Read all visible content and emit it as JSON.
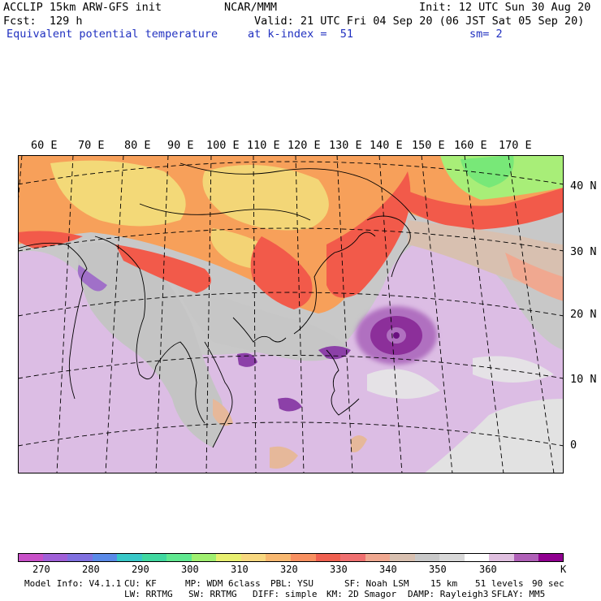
{
  "header": {
    "model": "ACCLIP 15km ARW-GFS init",
    "center": "NCAR/MMM",
    "init": "Init: 12 UTC Sun 30 Aug 20",
    "fcst": "Fcst:  129 h",
    "valid": "Valid: 21 UTC Fri 04 Sep 20 (06 JST Sat 05 Sep 20)",
    "field": "Equivalent potential temperature",
    "level": "at k-index =  51",
    "smooth": "sm= 2"
  },
  "map": {
    "lon_labels": [
      "60 E",
      "70 E",
      "80 E",
      "90 E",
      "100 E",
      "110 E",
      "120 E",
      "130 E",
      "140 E",
      "150 E",
      "160 E",
      "170 E"
    ],
    "lat_labels": [
      "40 N",
      "30 N",
      "20 N",
      "10 N",
      "0"
    ],
    "features": {
      "typhoon_center": "typhoon vortex east of Philippines",
      "colors": {
        "very_cold": "#8c1f8c",
        "cold": "#a070c8",
        "light_purple": "#d8b8e0",
        "grey": "#c4c4c4",
        "light_grey": "#e4e4e4",
        "tan": "#e6b89a",
        "salmon": "#f5916a",
        "red": "#f25a4a",
        "orange": "#f7a05a",
        "yellow": "#f2e07a",
        "lime": "#b8f070",
        "green": "#78e878"
      }
    }
  },
  "colorbar": {
    "colors": [
      "#c850c8",
      "#a060d8",
      "#8070e0",
      "#5a8ae8",
      "#38c8c8",
      "#40d8a0",
      "#60e890",
      "#a0f070",
      "#e8f070",
      "#f8d880",
      "#f8b870",
      "#f89060",
      "#f06050",
      "#f07070",
      "#f0a890",
      "#d8c0b0",
      "#c8c8c8",
      "#d8d8d8",
      "#ffffff",
      "#e0c0e0",
      "#b060b8",
      "#900090"
    ],
    "labels": [
      "270",
      "280",
      "290",
      "300",
      "310",
      "320",
      "330",
      "340",
      "350",
      "360",
      "K"
    ]
  },
  "footer": {
    "line1_model": "Model Info: V4.1.1",
    "line1_cu": "CU: KF",
    "line1_mp": "MP: WDM 6class",
    "line1_pbl": "PBL: YSU",
    "line1_sf": "SF: Noah LSM",
    "line1_res": "15 km",
    "line1_levels": "51 levels",
    "line1_dt": "90 sec",
    "line2_lw": "LW: RRTMG",
    "line2_sw": "SW: RRTMG",
    "line2_diff": "DIFF: simple",
    "line2_km": "KM: 2D Smagor",
    "line2_damp": "DAMP: Rayleigh3",
    "line2_sflay": "SFLAY: MM5"
  }
}
